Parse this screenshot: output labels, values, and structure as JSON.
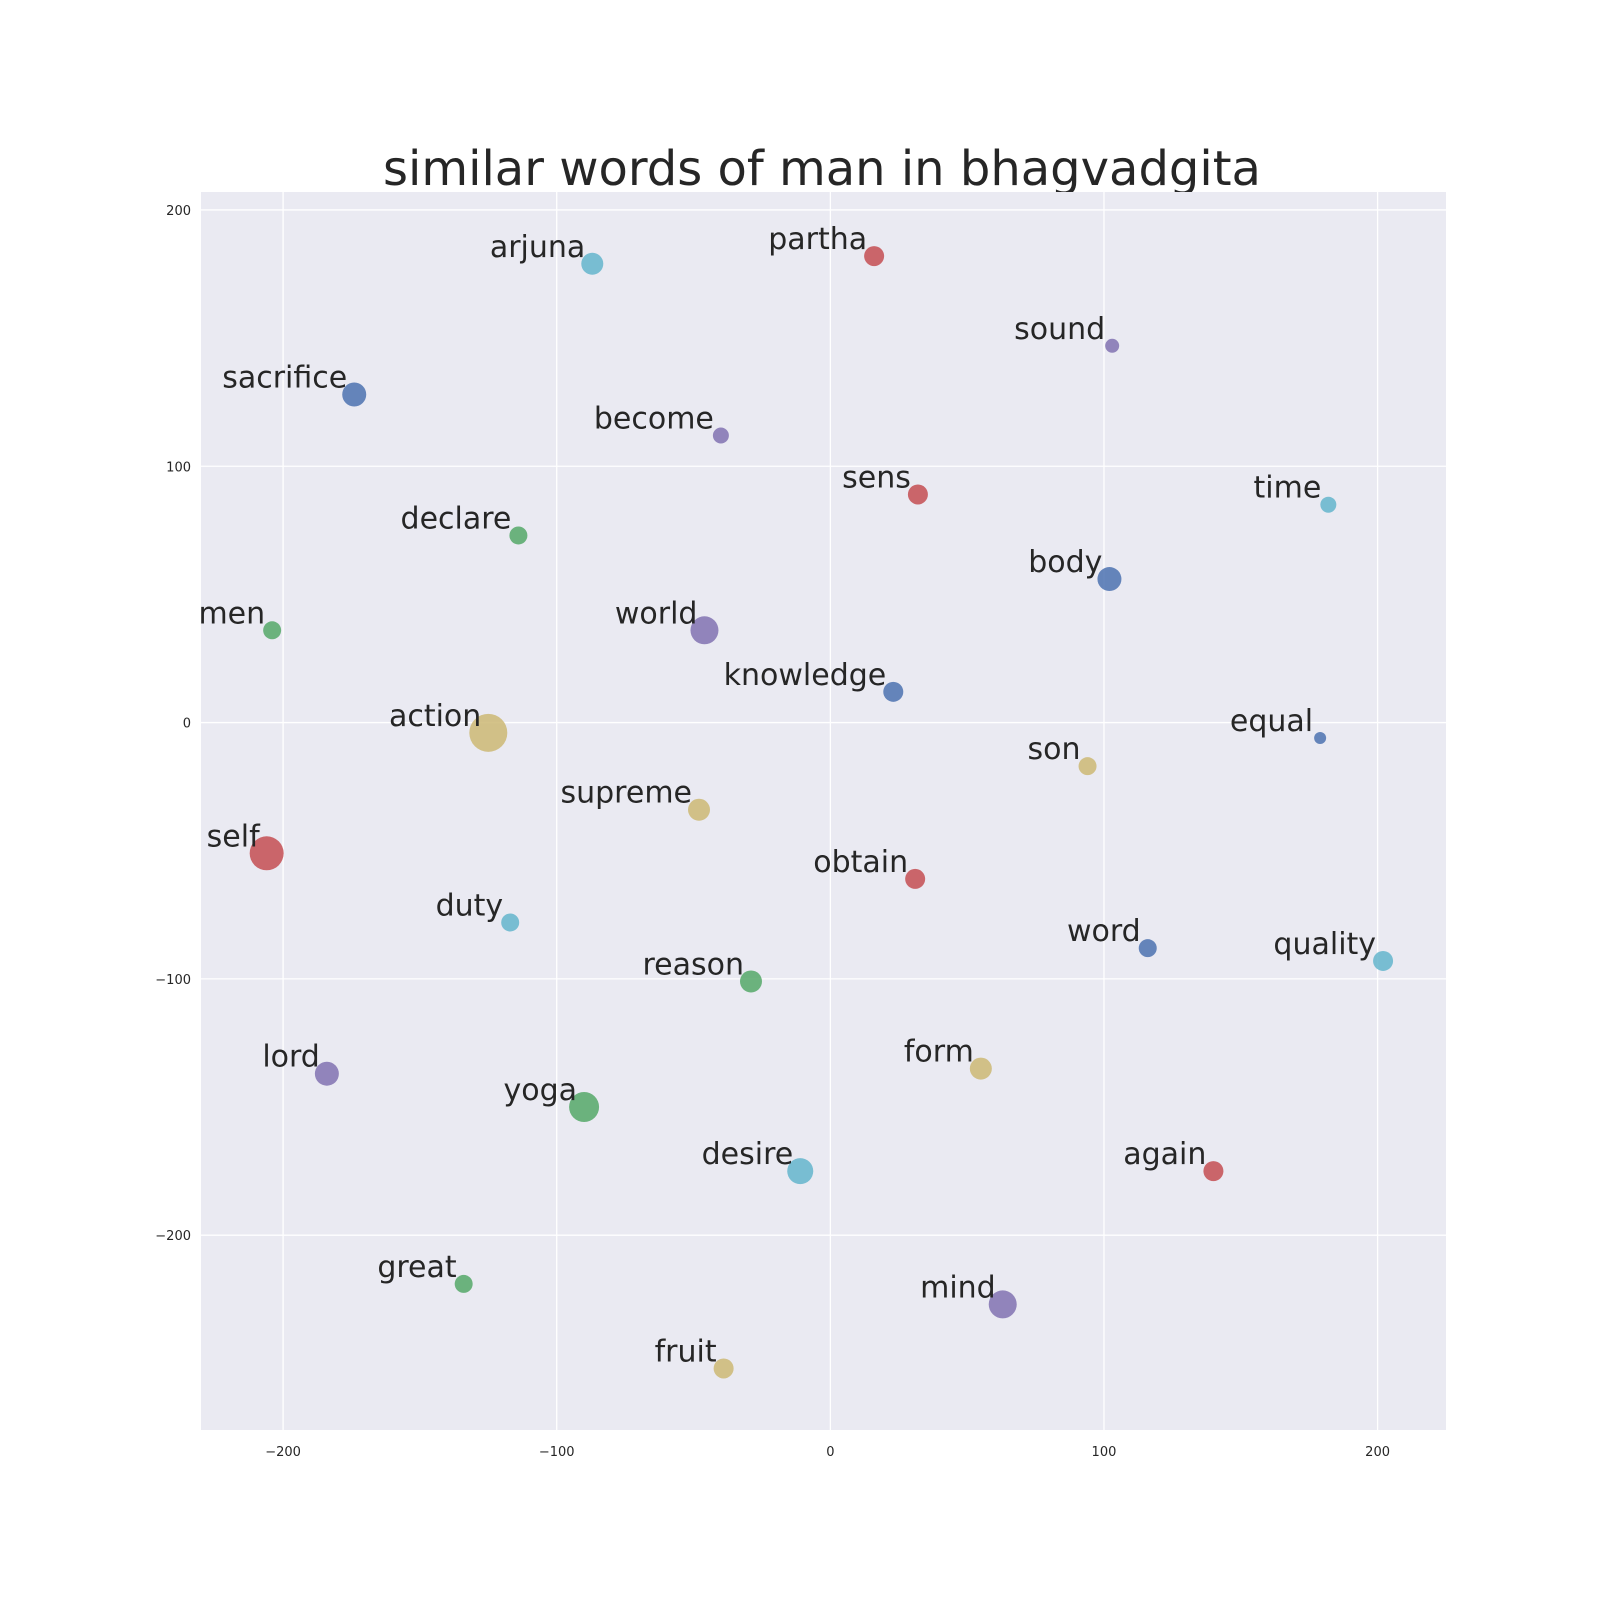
{
  "chart_data": {
    "type": "scatter",
    "title": "similar words of man in bhagvadgita",
    "xlabel": "",
    "ylabel": "",
    "xlim": [
      -230,
      225
    ],
    "ylim": [
      -276,
      207
    ],
    "xticks": [
      -200,
      -100,
      0,
      100,
      200
    ],
    "yticks": [
      200,
      100,
      0,
      -100,
      -200
    ],
    "xtick_labels": [
      "−200",
      "−100",
      "0",
      "100",
      "200"
    ],
    "ytick_labels": [
      "200",
      "100",
      "0",
      "−100",
      "−200"
    ],
    "grid": true,
    "background_color": "#eaeaf2",
    "grid_color": "#ffffff",
    "colors": {
      "blue": "#4c72b0",
      "green": "#55a868",
      "red": "#c44e52",
      "purple": "#8172b2",
      "yellow": "#ccb974",
      "cyan": "#64b5cd"
    },
    "points": [
      {
        "label": "arjuna",
        "x": -87,
        "y": 179,
        "size": 11,
        "color": "cyan"
      },
      {
        "label": "partha",
        "x": 16,
        "y": 182,
        "size": 10,
        "color": "red"
      },
      {
        "label": "sound",
        "x": 103,
        "y": 147,
        "size": 7,
        "color": "purple"
      },
      {
        "label": "sacrifice",
        "x": -174,
        "y": 128,
        "size": 12,
        "color": "blue"
      },
      {
        "label": "become",
        "x": -40,
        "y": 112,
        "size": 8,
        "color": "purple"
      },
      {
        "label": "sens",
        "x": 32,
        "y": 89,
        "size": 10,
        "color": "red"
      },
      {
        "label": "time",
        "x": 182,
        "y": 85,
        "size": 8,
        "color": "cyan"
      },
      {
        "label": "declare",
        "x": -114,
        "y": 73,
        "size": 9,
        "color": "green"
      },
      {
        "label": "body",
        "x": 102,
        "y": 56,
        "size": 12,
        "color": "blue"
      },
      {
        "label": "men",
        "x": -204,
        "y": 36,
        "size": 9,
        "color": "green"
      },
      {
        "label": "world",
        "x": -46,
        "y": 36,
        "size": 14,
        "color": "purple"
      },
      {
        "label": "knowledge",
        "x": 23,
        "y": 12,
        "size": 10,
        "color": "blue"
      },
      {
        "label": "action",
        "x": -125,
        "y": -4,
        "size": 19,
        "color": "yellow"
      },
      {
        "label": "equal",
        "x": 179,
        "y": -6,
        "size": 6,
        "color": "blue"
      },
      {
        "label": "son",
        "x": 94,
        "y": -17,
        "size": 9,
        "color": "yellow"
      },
      {
        "label": "supreme",
        "x": -48,
        "y": -34,
        "size": 11,
        "color": "yellow"
      },
      {
        "label": "self",
        "x": -206,
        "y": -51,
        "size": 17,
        "color": "red"
      },
      {
        "label": "obtain",
        "x": 31,
        "y": -61,
        "size": 10,
        "color": "red"
      },
      {
        "label": "duty",
        "x": -117,
        "y": -78,
        "size": 9,
        "color": "cyan"
      },
      {
        "label": "word",
        "x": 116,
        "y": -88,
        "size": 9,
        "color": "blue"
      },
      {
        "label": "quality",
        "x": 202,
        "y": -93,
        "size": 10,
        "color": "cyan"
      },
      {
        "label": "reason",
        "x": -29,
        "y": -101,
        "size": 11,
        "color": "green"
      },
      {
        "label": "lord",
        "x": -184,
        "y": -137,
        "size": 12,
        "color": "purple"
      },
      {
        "label": "form",
        "x": 55,
        "y": -135,
        "size": 11,
        "color": "yellow"
      },
      {
        "label": "yoga",
        "x": -90,
        "y": -150,
        "size": 15,
        "color": "green"
      },
      {
        "label": "desire",
        "x": -11,
        "y": -175,
        "size": 13,
        "color": "cyan"
      },
      {
        "label": "again",
        "x": 140,
        "y": -175,
        "size": 10,
        "color": "red"
      },
      {
        "label": "great",
        "x": -134,
        "y": -219,
        "size": 9,
        "color": "green"
      },
      {
        "label": "mind",
        "x": 63,
        "y": -227,
        "size": 14,
        "color": "purple"
      },
      {
        "label": "fruit",
        "x": -39,
        "y": -252,
        "size": 10,
        "color": "yellow"
      }
    ]
  }
}
